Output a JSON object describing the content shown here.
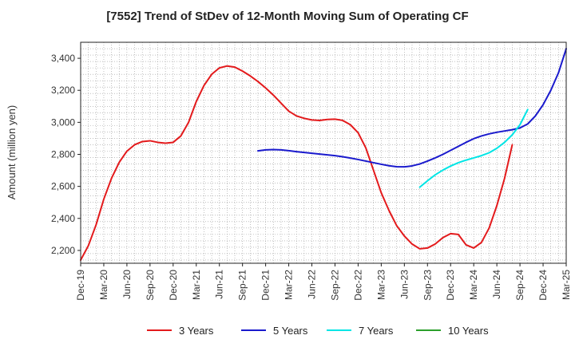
{
  "chart_data": {
    "type": "line",
    "title": "[7552]  Trend of StDev of 12-Month Moving Sum of Operating CF",
    "xlabel": "",
    "ylabel": "Amount (million yen)",
    "ylim": [
      2120,
      3500
    ],
    "yticks": [
      2200,
      2400,
      2600,
      2800,
      3000,
      3200,
      3400
    ],
    "ytick_labels": [
      "2,200",
      "2,400",
      "2,600",
      "2,800",
      "3,000",
      "3,200",
      "3,400"
    ],
    "x_start": "Dec-19",
    "xtick_labels": [
      "Dec-19",
      "Mar-20",
      "Jun-20",
      "Sep-20",
      "Dec-20",
      "Mar-21",
      "Jun-21",
      "Sep-21",
      "Dec-21",
      "Mar-22",
      "Jun-22",
      "Sep-22",
      "Dec-22",
      "Mar-23",
      "Jun-23",
      "Sep-23",
      "Dec-23",
      "Mar-24",
      "Jun-24",
      "Sep-24",
      "Dec-24",
      "Mar-25"
    ],
    "grid": true,
    "legend_position": "bottom",
    "series": [
      {
        "name": "3 Years",
        "color": "#e31a1c",
        "start": "Dec-19",
        "values": [
          2140,
          2230,
          2360,
          2520,
          2650,
          2750,
          2820,
          2860,
          2880,
          2885,
          2875,
          2870,
          2875,
          2915,
          3000,
          3130,
          3230,
          3300,
          3340,
          3352,
          3345,
          3320,
          3290,
          3255,
          3215,
          3170,
          3120,
          3070,
          3040,
          3025,
          3015,
          3012,
          3018,
          3020,
          3012,
          2985,
          2935,
          2840,
          2700,
          2560,
          2450,
          2355,
          2290,
          2240,
          2210,
          2215,
          2240,
          2280,
          2305,
          2300,
          2235,
          2215,
          2250,
          2340,
          2480,
          2650,
          2860
        ]
      },
      {
        "name": "5 Years",
        "color": "#1a1acd",
        "start": "Nov-21",
        "values": [
          2822,
          2828,
          2830,
          2828,
          2823,
          2817,
          2812,
          2807,
          2802,
          2797,
          2792,
          2785,
          2777,
          2768,
          2758,
          2748,
          2738,
          2729,
          2723,
          2722,
          2728,
          2740,
          2758,
          2778,
          2800,
          2825,
          2850,
          2875,
          2898,
          2915,
          2928,
          2938,
          2946,
          2954,
          2965,
          2990,
          3040,
          3110,
          3200,
          3310,
          3460
        ]
      },
      {
        "name": "7 Years",
        "color": "#00e5e5",
        "start": "Aug-23",
        "values": [
          2595,
          2635,
          2672,
          2702,
          2727,
          2748,
          2764,
          2778,
          2792,
          2810,
          2838,
          2875,
          2922,
          2985,
          3080
        ]
      },
      {
        "name": "10 Years",
        "color": "#2ca02c",
        "start": "Sep-24",
        "values": []
      }
    ]
  }
}
